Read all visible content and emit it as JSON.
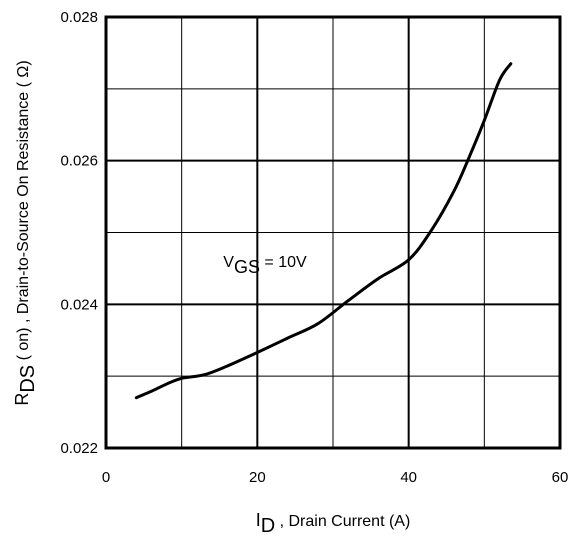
{
  "chart_data": {
    "type": "line",
    "xlabel": {
      "main": "I",
      "sub": "D",
      "rest": " , Drain Current (A)"
    },
    "ylabel": {
      "main": "R",
      "sub": "DS",
      "rest": " ( on) , Drain-to-Source On Resistance ( Ω)"
    },
    "xlim": [
      0,
      60
    ],
    "ylim": [
      0.022,
      0.028
    ],
    "x_ticks": [
      "0",
      "20",
      "40",
      "60"
    ],
    "y_ticks": [
      "0.022",
      "0.024",
      "0.026",
      "0.028"
    ],
    "grid": true,
    "annotation": {
      "main": "V",
      "sub": "GS",
      "rest": " = 10V",
      "x": 15.5,
      "y": 0.0246
    },
    "series": [
      {
        "x": [
          4,
          6,
          8,
          10,
          13,
          16,
          20,
          24,
          28,
          32,
          36,
          40,
          43,
          46,
          48,
          50,
          52,
          53.5
        ],
        "y": [
          0.0227,
          0.02279,
          0.02289,
          0.02297,
          0.02302,
          0.02314,
          0.02333,
          0.02353,
          0.02373,
          0.02405,
          0.02436,
          0.02462,
          0.02503,
          0.02558,
          0.02605,
          0.02656,
          0.02712,
          0.02735
        ]
      }
    ]
  }
}
